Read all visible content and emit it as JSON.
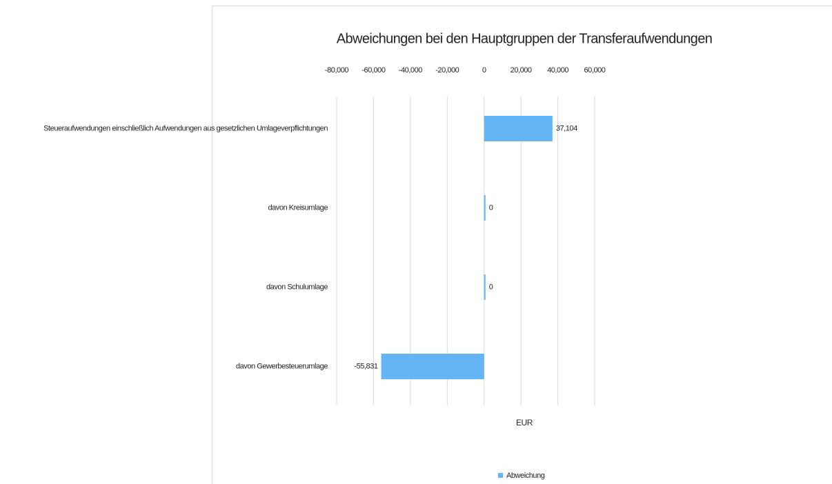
{
  "chart_data": {
    "type": "bar",
    "orientation": "horizontal",
    "title": "Abweichungen bei den Hauptgruppen der Transferaufwendungen",
    "categories": [
      "Steueraufwendungen einschließlich Aufwendungen aus gesetzlichen Umlageverpflichtungen",
      "davon Kreisumlage",
      "davon Schulumlage",
      "davon Gewerbesteuerumlage"
    ],
    "series": [
      {
        "name": "Abweichung",
        "color": "#63b5f6",
        "values": [
          37104,
          0,
          0,
          -55831
        ],
        "value_labels": [
          "37,104",
          "0",
          "0",
          "-55,831"
        ]
      }
    ],
    "xlabel": "EUR",
    "xlim": [
      -80000,
      60000
    ],
    "xticks": [
      {
        "value": -80000,
        "label": "-80,000"
      },
      {
        "value": -60000,
        "label": "-60,000"
      },
      {
        "value": -40000,
        "label": "-40,000"
      },
      {
        "value": -20000,
        "label": "-20,000"
      },
      0,
      {
        "value": 20000,
        "label": "20,000"
      },
      {
        "value": 40000,
        "label": "40,000"
      },
      {
        "value": 60000,
        "label": "60,000"
      }
    ],
    "grid": true,
    "legend": "bottom"
  }
}
